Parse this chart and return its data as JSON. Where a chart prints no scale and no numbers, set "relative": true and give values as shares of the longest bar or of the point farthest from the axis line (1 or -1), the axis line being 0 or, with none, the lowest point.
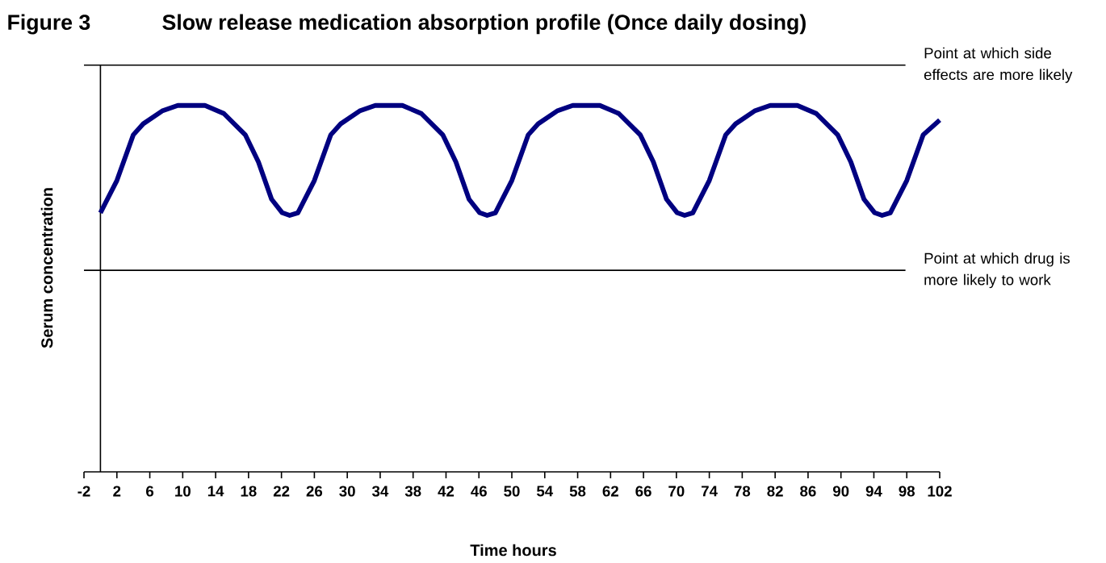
{
  "chart_data": {
    "type": "line",
    "title": "Slow release medication absorption profile (Once daily dosing)",
    "annotations": [
      "Figure 3"
    ],
    "xlabel": "Time hours",
    "ylabel": "Serum concentration",
    "relative": true,
    "xlim": [
      -2,
      102
    ],
    "xticks": [
      -2,
      2,
      6,
      10,
      14,
      18,
      22,
      26,
      30,
      34,
      38,
      42,
      46,
      50,
      54,
      58,
      62,
      66,
      70,
      74,
      78,
      82,
      86,
      90,
      94,
      98,
      102
    ],
    "x": [
      0,
      2,
      4,
      5.2,
      7.5,
      9.4,
      12.7,
      15,
      17.6,
      19.2,
      20.8,
      22.1,
      23,
      24,
      26,
      28,
      29.2,
      31.5,
      33.4,
      36.7,
      39,
      41.6,
      43.2,
      44.8,
      46.1,
      47,
      48,
      50,
      52,
      53.2,
      55.5,
      57.4,
      60.7,
      63,
      65.6,
      67.2,
      68.8,
      70.1,
      71,
      72,
      74,
      76,
      77.2,
      79.5,
      81.4,
      84.7,
      87,
      89.6,
      91.2,
      92.8,
      94.1,
      95,
      96,
      98,
      100,
      102
    ],
    "series": [
      {
        "color": "#000080",
        "values": [
          0.707,
          0.795,
          0.92,
          0.95,
          0.985,
          1,
          1,
          0.978,
          0.92,
          0.846,
          0.744,
          0.707,
          0.7,
          0.707,
          0.795,
          0.92,
          0.95,
          0.985,
          1,
          1,
          0.978,
          0.92,
          0.846,
          0.744,
          0.707,
          0.7,
          0.707,
          0.795,
          0.92,
          0.95,
          0.985,
          1,
          1,
          0.978,
          0.92,
          0.846,
          0.744,
          0.707,
          0.7,
          0.707,
          0.795,
          0.92,
          0.95,
          0.985,
          1,
          1,
          0.978,
          0.92,
          0.846,
          0.744,
          0.707,
          0.7,
          0.707,
          0.795,
          0.92,
          0.96
        ]
      }
    ],
    "ref_lines": [
      {
        "axis": "y",
        "value": 1.11,
        "label": "Point at which side effects are more likely",
        "color": "#000000"
      },
      {
        "axis": "y",
        "value": 0.55,
        "label": "Point at which drug is more likely to work",
        "color": "#000000"
      }
    ]
  }
}
